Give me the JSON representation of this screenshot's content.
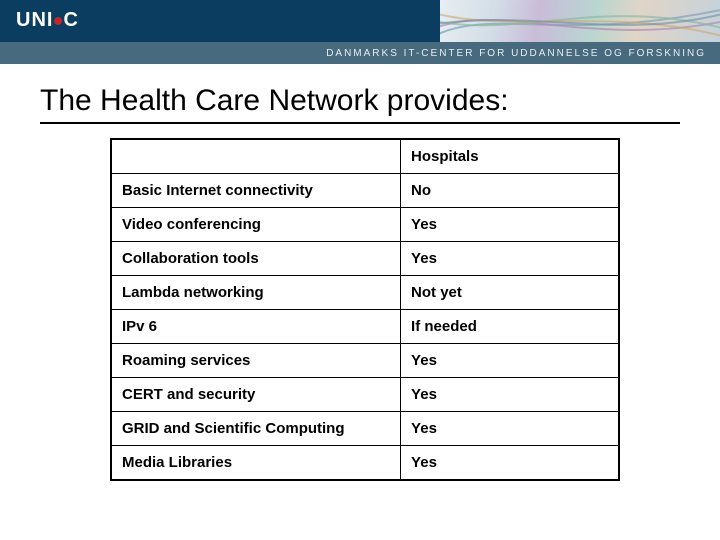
{
  "brand": {
    "logo_prefix": "UNI",
    "logo_suffix": "C",
    "subheader": "DANMARKS IT-CENTER FOR UDDANNELSE OG FORSKNING"
  },
  "slide": {
    "title": "The Health Care Network provides:"
  },
  "table": {
    "type": "table",
    "columns": [
      "",
      "Hospitals"
    ],
    "column_widths_pct": [
      57,
      43
    ],
    "rows": [
      [
        "Basic Internet connectivity",
        "No"
      ],
      [
        "Video conferencing",
        "Yes"
      ],
      [
        "Collaboration tools",
        "Yes"
      ],
      [
        "Lambda networking",
        "Not yet"
      ],
      [
        "IPv 6",
        "If needed"
      ],
      [
        "Roaming services",
        "Yes"
      ],
      [
        "CERT and security",
        "Yes"
      ],
      [
        "GRID and Scientific Computing",
        "Yes"
      ],
      [
        "Media Libraries",
        "Yes"
      ]
    ],
    "border_color": "#000000",
    "cell_font_size": 15,
    "cell_font_weight": "bold",
    "text_color": "#000000",
    "background_color": "#ffffff"
  },
  "colors": {
    "header_band": "#0a3d5f",
    "subheader_band": "#486a7f",
    "logo_dot": "#c1272d",
    "title_underline": "#000000"
  }
}
